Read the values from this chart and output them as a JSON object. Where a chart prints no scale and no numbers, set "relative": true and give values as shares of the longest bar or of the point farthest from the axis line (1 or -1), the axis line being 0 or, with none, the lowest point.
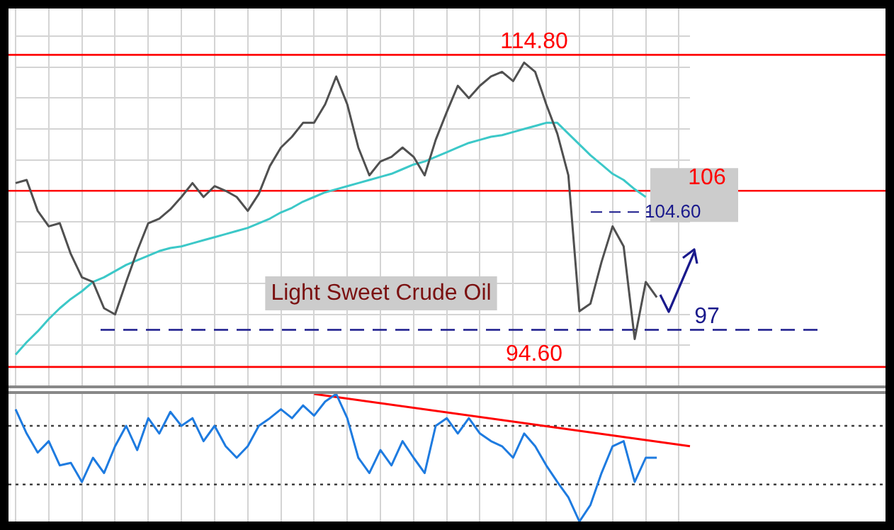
{
  "chart_data": [
    {
      "type": "line",
      "categories": [
        null,
        null,
        null,
        null,
        null,
        null,
        null,
        null,
        null,
        null,
        null,
        null,
        null,
        null,
        null,
        null,
        null,
        null,
        null,
        null,
        null,
        null,
        null,
        null,
        null,
        null,
        null,
        null,
        null,
        null,
        null,
        null,
        null,
        null,
        null,
        null,
        null,
        null,
        null,
        null,
        null,
        null,
        null,
        null,
        null,
        null,
        null,
        null,
        null,
        null,
        null,
        null,
        null,
        null,
        null,
        null,
        null,
        null,
        null,
        null,
        null,
        null
      ],
      "series": [
        {
          "color": "#505050",
          "values": [
            106.5,
            106.7,
            104.7,
            103.7,
            103.9,
            101.9,
            100.4,
            100.1,
            98.4,
            98.0,
            100.1,
            102.1,
            103.9,
            104.2,
            104.8,
            105.6,
            106.5,
            105.6,
            106.3,
            106.0,
            105.6,
            104.7,
            105.8,
            107.6,
            108.8,
            109.5,
            110.4,
            110.4,
            111.6,
            113.4,
            111.6,
            108.8,
            107.0,
            107.9,
            108.2,
            108.8,
            108.2,
            107.0,
            109.3,
            111.1,
            112.8,
            112.0,
            112.8,
            113.4,
            113.7,
            113.1,
            114.3,
            113.7,
            111.6,
            109.7,
            107.0,
            98.2,
            98.7,
            101.4,
            103.7,
            102.4,
            96.4,
            100.1,
            99.1,
            null,
            null,
            null
          ]
        },
        {
          "color": "#3cc8c8",
          "values": [
            95.4,
            96.2,
            96.9,
            97.7,
            98.4,
            99.0,
            99.5,
            100.1,
            100.4,
            100.8,
            101.2,
            101.5,
            101.8,
            102.1,
            102.3,
            102.4,
            102.6,
            102.8,
            103.0,
            103.2,
            103.4,
            103.6,
            103.9,
            104.2,
            104.6,
            104.9,
            105.3,
            105.6,
            105.9,
            106.1,
            106.3,
            106.5,
            106.7,
            106.9,
            107.1,
            107.4,
            107.7,
            107.9,
            108.2,
            108.5,
            108.8,
            109.1,
            109.3,
            109.5,
            109.6,
            109.8,
            110.0,
            110.2,
            110.4,
            110.4,
            109.7,
            109.0,
            108.3,
            107.7,
            107.1,
            106.7,
            106.1,
            105.6,
            null,
            null,
            null,
            null
          ]
        }
      ],
      "ylim": [
        93.4,
        117.8
      ],
      "yticks": [
        {
          "value": 96,
          "label": null
        },
        {
          "value": 98,
          "label": null
        },
        {
          "value": 100,
          "label": null
        },
        {
          "value": 102,
          "label": null
        },
        {
          "value": 104,
          "label": null
        },
        {
          "value": 106,
          "label": null
        },
        {
          "value": 108,
          "label": null
        },
        {
          "value": 110,
          "label": null
        },
        {
          "value": 112,
          "label": null
        },
        {
          "value": 114,
          "label": null
        },
        {
          "value": 116,
          "label": null
        }
      ],
      "ref_lines": [
        {
          "axis": "y",
          "value": 114.8,
          "label": "114.80",
          "color": "#ff0000"
        },
        {
          "axis": "y",
          "value": 106,
          "label": "106",
          "color": "#ff0000"
        },
        {
          "axis": "y",
          "value": 97,
          "label": "97",
          "color": "#1a1a8c",
          "line_style": "dashed"
        },
        {
          "axis": "y",
          "value": 94.6,
          "label": "94.60",
          "color": "#ff0000"
        }
      ],
      "annotations": [
        "Light Sweet Crude Oil",
        "104.60"
      ],
      "grid": true,
      "legend": false,
      "tick_labels": false,
      "marker": "none"
    },
    {
      "type": "line",
      "relative": true,
      "categories": [
        null,
        null,
        null,
        null,
        null,
        null,
        null,
        null,
        null,
        null,
        null,
        null,
        null,
        null,
        null,
        null,
        null,
        null,
        null,
        null,
        null,
        null,
        null,
        null,
        null,
        null,
        null,
        null,
        null,
        null,
        null,
        null,
        null,
        null,
        null,
        null,
        null,
        null,
        null,
        null,
        null,
        null,
        null,
        null,
        null,
        null,
        null,
        null,
        null,
        null,
        null,
        null,
        null,
        null,
        null,
        null,
        null,
        null,
        null,
        null,
        null,
        null
      ],
      "series": [
        {
          "color": "#1e7be0",
          "values": [
            0.88,
            0.69,
            0.54,
            0.63,
            0.44,
            0.46,
            0.31,
            0.5,
            0.38,
            0.59,
            0.75,
            0.56,
            0.81,
            0.69,
            0.86,
            0.75,
            0.81,
            0.63,
            0.75,
            0.59,
            0.5,
            0.59,
            0.75,
            0.81,
            0.88,
            0.81,
            0.91,
            0.83,
            0.94,
            1.0,
            0.81,
            0.5,
            0.38,
            0.56,
            0.44,
            0.63,
            0.5,
            0.38,
            0.75,
            0.81,
            0.69,
            0.81,
            0.69,
            0.63,
            0.59,
            0.5,
            0.69,
            0.59,
            0.44,
            0.31,
            0.19,
            0,
            0.13,
            0.38,
            0.59,
            0.63,
            0.31,
            0.5,
            0.5,
            null,
            null,
            null
          ]
        },
        {
          "color": "#ff0000",
          "values": [
            null,
            null,
            null,
            null,
            null,
            null,
            null,
            null,
            null,
            null,
            null,
            null,
            null,
            null,
            null,
            null,
            null,
            null,
            null,
            null,
            null,
            null,
            null,
            null,
            null,
            null,
            null,
            1.0,
            null,
            null,
            null,
            null,
            null,
            null,
            null,
            null,
            null,
            null,
            null,
            null,
            null,
            null,
            null,
            null,
            null,
            null,
            null,
            null,
            null,
            null,
            null,
            null,
            null,
            null,
            null,
            null,
            null,
            null,
            null,
            null,
            null,
            0.59
          ]
        }
      ],
      "ref_lines": [
        {
          "axis": "y",
          "value": 0.75,
          "color": "#404040",
          "line_style": "dotted"
        },
        {
          "axis": "y",
          "value": 0.29,
          "color": "#404040",
          "line_style": "dotted"
        }
      ],
      "grid": "x",
      "legend": false,
      "tick_labels": false,
      "marker": "none"
    }
  ]
}
